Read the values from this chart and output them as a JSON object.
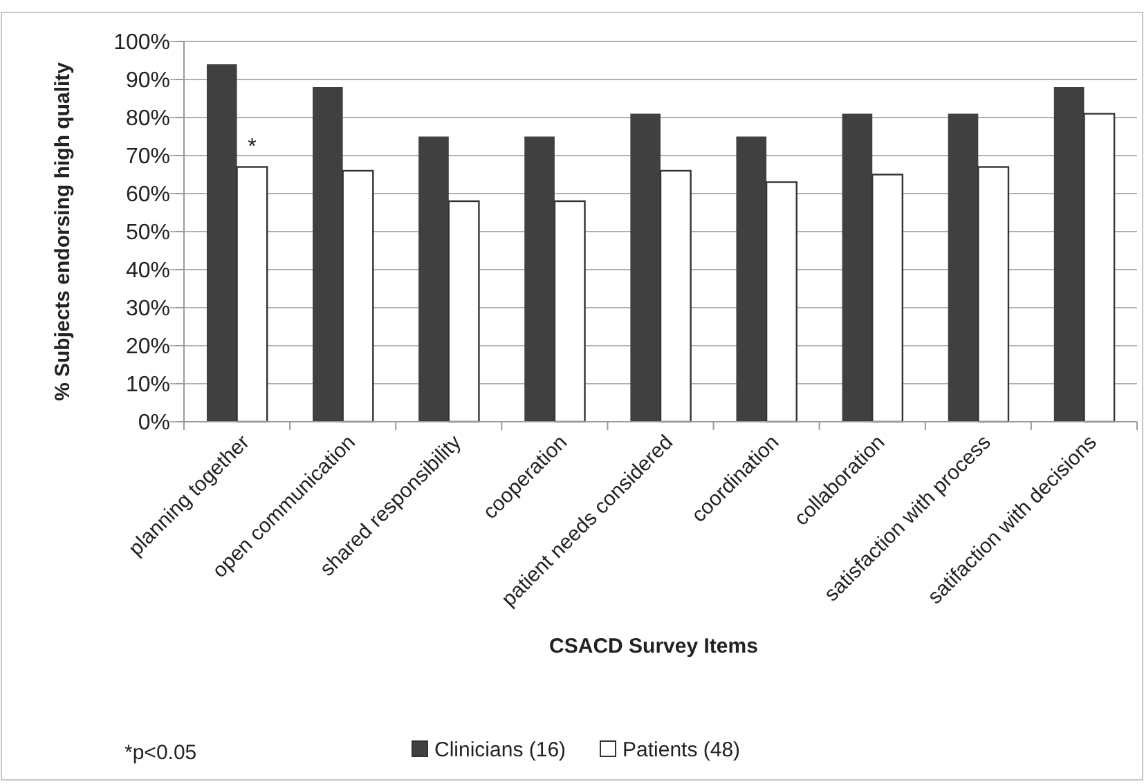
{
  "chart_data": {
    "type": "bar",
    "xlabel": "CSACD Survey Items",
    "ylabel": "% Subjects endorsing high quality",
    "categories": [
      "planning together",
      "open communication",
      "shared responsibility",
      "cooperation",
      "patient needs considered",
      "coordination",
      "collaboration",
      "satisfaction with process",
      "satifaction with decisions"
    ],
    "series": [
      {
        "name": "Clinicians (16)",
        "color": "#404040",
        "values": [
          94,
          88,
          75,
          75,
          81,
          75,
          81,
          81,
          88
        ]
      },
      {
        "name": "Patients (48)",
        "color": "#ffffff",
        "values": [
          67,
          66,
          58,
          58,
          66,
          63,
          65,
          67,
          81
        ]
      }
    ],
    "ylim": [
      0,
      100
    ],
    "yticks": [
      {
        "value": 0,
        "label": "0%"
      },
      {
        "value": 10,
        "label": "10%"
      },
      {
        "value": 20,
        "label": "20%"
      },
      {
        "value": 30,
        "label": "30%"
      },
      {
        "value": 40,
        "label": "40%"
      },
      {
        "value": 50,
        "label": "50%"
      },
      {
        "value": 60,
        "label": "60%"
      },
      {
        "value": 70,
        "label": "70%"
      },
      {
        "value": 80,
        "label": "80%"
      },
      {
        "value": 90,
        "label": "90%"
      },
      {
        "value": 100,
        "label": "100%"
      }
    ],
    "grid": "y",
    "legend": "bottom",
    "annotations": [
      {
        "text": "*",
        "x": "planning together",
        "y": 67
      },
      "*p<0.05"
    ]
  }
}
